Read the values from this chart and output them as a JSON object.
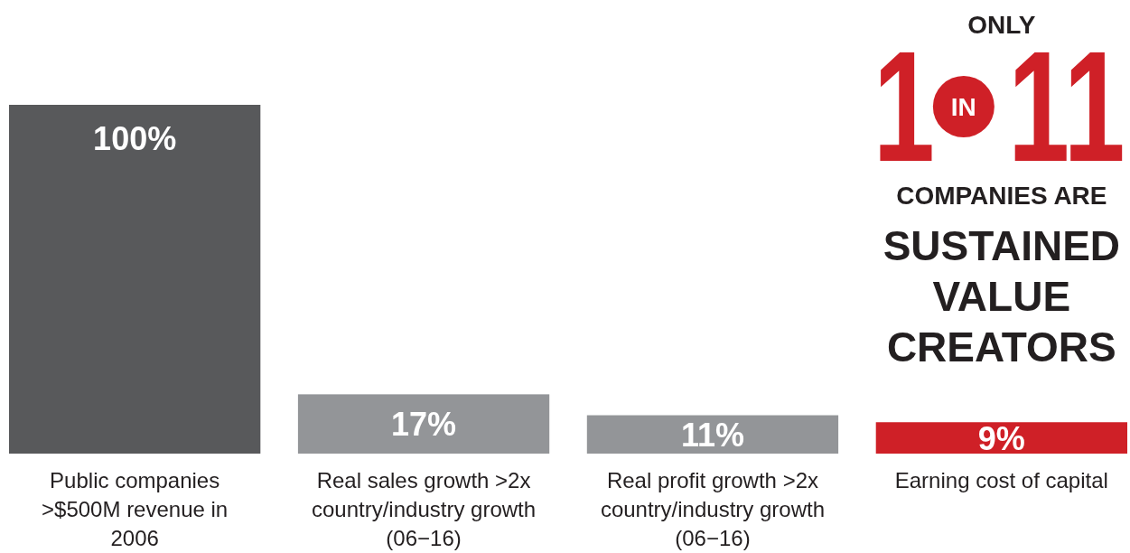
{
  "chart_data": {
    "type": "bar",
    "categories": [
      "Public companies >$500M revenue in 2006",
      "Real sales growth >2x country/industry growth (06−16)",
      "Real profit growth >2x country/industry growth (06−16)",
      "Earning cost of capital"
    ],
    "values": [
      100,
      17,
      11,
      9
    ],
    "colors": [
      "#58595b",
      "#939598",
      "#939598",
      "#cf2027"
    ],
    "value_labels": [
      "100%",
      "17%",
      "11%",
      "9%"
    ],
    "annotations": [
      "ONLY",
      "1",
      "IN",
      "11",
      "COMPANIES ARE",
      "SUSTAINED VALUE CREATORS"
    ]
  }
}
